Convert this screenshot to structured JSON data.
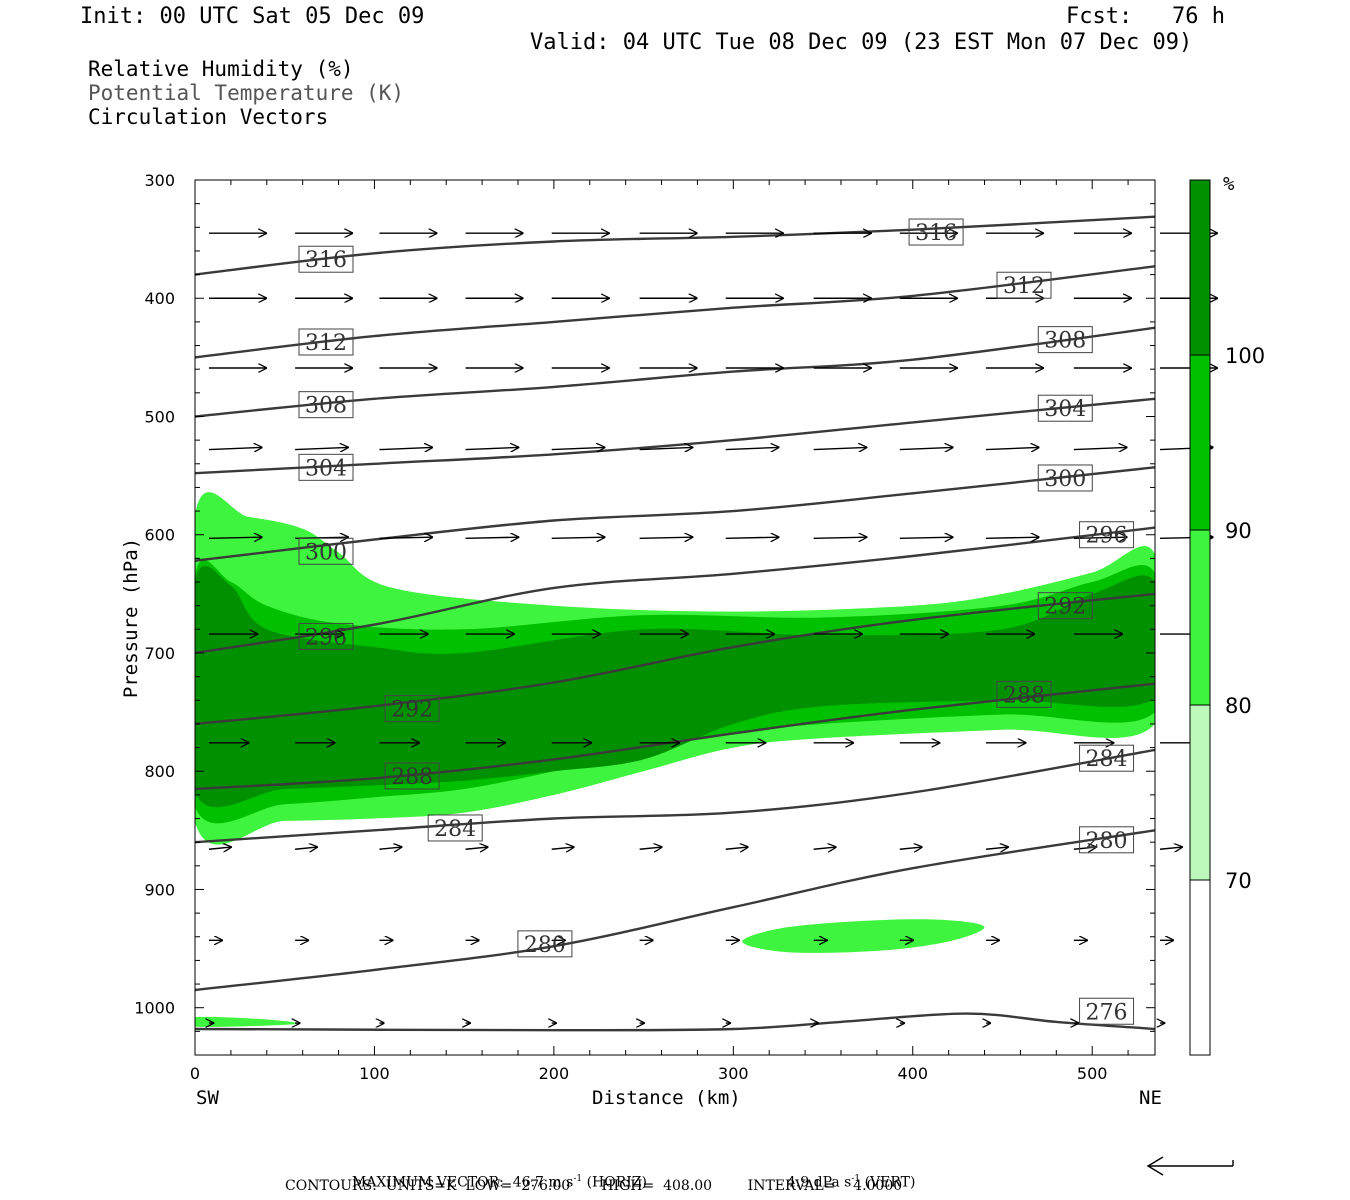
{
  "header": {
    "init": "Init: 00 UTC Sat 05 Dec 09",
    "fcst": "Fcst:   76 h",
    "valid": "Valid: 04 UTC Tue 08 Dec 09 (23 EST Mon 07 Dec 09)"
  },
  "legend": {
    "rh": "Relative Humidity (%)",
    "theta": "Potential Temperature (K)",
    "vectors": "Circulation Vectors"
  },
  "chart_data": {
    "type": "cross-section",
    "xlabel": "Distance (km)",
    "ylabel": "Pressure (hPa)",
    "x_ticks": [
      0,
      100,
      200,
      300,
      400,
      500
    ],
    "y_ticks": [
      300,
      400,
      500,
      600,
      700,
      800,
      900,
      1000
    ],
    "xlim": [
      0,
      535
    ],
    "ylim": [
      300,
      1040
    ],
    "y_inverted": true,
    "x_end_labels": {
      "left": "SW",
      "right": "NE"
    },
    "colorbar": {
      "unit": "%",
      "levels": [
        70,
        80,
        90,
        100
      ],
      "colors": [
        "#ffffff",
        "#bdf8bd",
        "#3ef43e",
        "#00c000",
        "#009000"
      ]
    },
    "theta_contours": [
      {
        "label": "316",
        "pts": [
          [
            0,
            380
          ],
          [
            100,
            362
          ],
          [
            200,
            352
          ],
          [
            300,
            348
          ],
          [
            400,
            342
          ],
          [
            535,
            331
          ]
        ],
        "label_at": [
          73,
          367
        ]
      },
      {
        "label": "316",
        "pts": [
          [
            0,
            380
          ],
          [
            100,
            362
          ],
          [
            200,
            352
          ],
          [
            300,
            348
          ],
          [
            400,
            342
          ],
          [
            535,
            331
          ]
        ],
        "label_at": [
          413,
          344
        ]
      },
      {
        "label": "312",
        "pts": [
          [
            0,
            450
          ],
          [
            100,
            432
          ],
          [
            200,
            420
          ],
          [
            300,
            408
          ],
          [
            400,
            398
          ],
          [
            535,
            373
          ]
        ],
        "label_at": [
          73,
          437
        ]
      },
      {
        "label": "312",
        "pts": [
          [
            0,
            450
          ],
          [
            100,
            432
          ],
          [
            200,
            420
          ],
          [
            300,
            408
          ],
          [
            400,
            398
          ],
          [
            535,
            373
          ]
        ],
        "label_at": [
          462,
          389
        ]
      },
      {
        "label": "308",
        "pts": [
          [
            0,
            500
          ],
          [
            100,
            485
          ],
          [
            200,
            475
          ],
          [
            300,
            462
          ],
          [
            400,
            452
          ],
          [
            535,
            425
          ]
        ],
        "label_at": [
          73,
          490
        ]
      },
      {
        "label": "308",
        "pts": [
          [
            0,
            500
          ],
          [
            100,
            485
          ],
          [
            200,
            475
          ],
          [
            300,
            462
          ],
          [
            400,
            452
          ],
          [
            535,
            425
          ]
        ],
        "label_at": [
          485,
          435
        ]
      },
      {
        "label": "304",
        "pts": [
          [
            0,
            548
          ],
          [
            100,
            540
          ],
          [
            200,
            532
          ],
          [
            300,
            520
          ],
          [
            400,
            505
          ],
          [
            535,
            485
          ]
        ],
        "label_at": [
          73,
          543
        ]
      },
      {
        "label": "304",
        "pts": [
          [
            0,
            548
          ],
          [
            100,
            540
          ],
          [
            200,
            532
          ],
          [
            300,
            520
          ],
          [
            400,
            505
          ],
          [
            535,
            485
          ]
        ],
        "label_at": [
          485,
          493
        ]
      },
      {
        "label": "300",
        "pts": [
          [
            0,
            622
          ],
          [
            100,
            604
          ],
          [
            200,
            588
          ],
          [
            300,
            580
          ],
          [
            400,
            565
          ],
          [
            535,
            543
          ]
        ],
        "label_at": [
          73,
          614
        ]
      },
      {
        "label": "300",
        "pts": [
          [
            0,
            622
          ],
          [
            100,
            604
          ],
          [
            200,
            588
          ],
          [
            300,
            580
          ],
          [
            400,
            565
          ],
          [
            535,
            543
          ]
        ],
        "label_at": [
          485,
          552
        ]
      },
      {
        "label": "296",
        "pts": [
          [
            0,
            700
          ],
          [
            100,
            676
          ],
          [
            200,
            645
          ],
          [
            300,
            633
          ],
          [
            400,
            618
          ],
          [
            535,
            594
          ]
        ],
        "label_at": [
          73,
          686
        ]
      },
      {
        "label": "296",
        "pts": [
          [
            0,
            700
          ],
          [
            100,
            676
          ],
          [
            200,
            645
          ],
          [
            300,
            633
          ],
          [
            400,
            618
          ],
          [
            535,
            594
          ]
        ],
        "label_at": [
          508,
          600
        ]
      },
      {
        "label": "292",
        "pts": [
          [
            0,
            760
          ],
          [
            100,
            745
          ],
          [
            200,
            725
          ],
          [
            300,
            695
          ],
          [
            400,
            672
          ],
          [
            535,
            650
          ]
        ],
        "label_at": [
          121,
          747
        ]
      },
      {
        "label": "292",
        "pts": [
          [
            0,
            760
          ],
          [
            100,
            745
          ],
          [
            200,
            725
          ],
          [
            300,
            695
          ],
          [
            400,
            672
          ],
          [
            535,
            650
          ]
        ],
        "label_at": [
          485,
          660
        ]
      },
      {
        "label": "288",
        "pts": [
          [
            0,
            815
          ],
          [
            100,
            806
          ],
          [
            200,
            790
          ],
          [
            300,
            768
          ],
          [
            400,
            748
          ],
          [
            535,
            726
          ]
        ],
        "label_at": [
          121,
          804
        ]
      },
      {
        "label": "288",
        "pts": [
          [
            0,
            815
          ],
          [
            100,
            806
          ],
          [
            200,
            790
          ],
          [
            300,
            768
          ],
          [
            400,
            748
          ],
          [
            535,
            726
          ]
        ],
        "label_at": [
          462,
          735
        ]
      },
      {
        "label": "284",
        "pts": [
          [
            0,
            860
          ],
          [
            100,
            850
          ],
          [
            200,
            840
          ],
          [
            300,
            835
          ],
          [
            400,
            818
          ],
          [
            535,
            782
          ]
        ],
        "label_at": [
          145,
          848
        ]
      },
      {
        "label": "284",
        "pts": [
          [
            0,
            860
          ],
          [
            100,
            850
          ],
          [
            200,
            840
          ],
          [
            300,
            835
          ],
          [
            400,
            818
          ],
          [
            535,
            782
          ]
        ],
        "label_at": [
          508,
          789
        ]
      },
      {
        "label": "280",
        "pts": [
          [
            0,
            985
          ],
          [
            100,
            968
          ],
          [
            200,
            948
          ],
          [
            300,
            915
          ],
          [
            400,
            882
          ],
          [
            535,
            850
          ]
        ],
        "label_at": [
          195,
          946
        ]
      },
      {
        "label": "280",
        "pts": [
          [
            0,
            985
          ],
          [
            100,
            968
          ],
          [
            200,
            948
          ],
          [
            300,
            915
          ],
          [
            400,
            882
          ],
          [
            535,
            850
          ]
        ],
        "label_at": [
          508,
          858
        ]
      },
      {
        "label": "276",
        "pts": [
          [
            0,
            1018
          ],
          [
            200,
            1019
          ],
          [
            300,
            1018
          ],
          [
            360,
            1012
          ],
          [
            430,
            1005
          ],
          [
            480,
            1012
          ],
          [
            535,
            1018
          ]
        ],
        "label_at": [
          508,
          1003
        ]
      }
    ],
    "rh_regions": [
      {
        "level": 80,
        "pts": [
          [
            0,
            583
          ],
          [
            30,
            585
          ],
          [
            60,
            595
          ],
          [
            80,
            615
          ],
          [
            110,
            645
          ],
          [
            200,
            660
          ],
          [
            300,
            665
          ],
          [
            400,
            660
          ],
          [
            450,
            650
          ],
          [
            500,
            632
          ],
          [
            535,
            617
          ],
          [
            535,
            760
          ],
          [
            450,
            765
          ],
          [
            350,
            772
          ],
          [
            300,
            780
          ],
          [
            250,
            800
          ],
          [
            200,
            820
          ],
          [
            150,
            835
          ],
          [
            100,
            840
          ],
          [
            50,
            842
          ],
          [
            0,
            843
          ]
        ]
      },
      {
        "level": 90,
        "pts": [
          [
            0,
            635
          ],
          [
            20,
            640
          ],
          [
            40,
            660
          ],
          [
            80,
            675
          ],
          [
            150,
            680
          ],
          [
            250,
            668
          ],
          [
            350,
            670
          ],
          [
            450,
            660
          ],
          [
            500,
            640
          ],
          [
            535,
            633
          ],
          [
            535,
            750
          ],
          [
            450,
            752
          ],
          [
            350,
            760
          ],
          [
            300,
            768
          ],
          [
            250,
            782
          ],
          [
            200,
            800
          ],
          [
            150,
            815
          ],
          [
            100,
            822
          ],
          [
            50,
            828
          ],
          [
            0,
            830
          ]
        ]
      },
      {
        "level": 100,
        "pts": [
          [
            0,
            640
          ],
          [
            20,
            643
          ],
          [
            40,
            680
          ],
          [
            100,
            695
          ],
          [
            150,
            700
          ],
          [
            250,
            680
          ],
          [
            350,
            685
          ],
          [
            450,
            680
          ],
          [
            500,
            650
          ],
          [
            535,
            640
          ],
          [
            535,
            738
          ],
          [
            450,
            740
          ],
          [
            350,
            745
          ],
          [
            300,
            760
          ],
          [
            250,
            790
          ],
          [
            200,
            800
          ],
          [
            150,
            808
          ],
          [
            100,
            812
          ],
          [
            50,
            815
          ],
          [
            0,
            818
          ]
        ]
      },
      {
        "level": 80,
        "pts": [
          [
            305,
            944
          ],
          [
            330,
            932
          ],
          [
            380,
            926
          ],
          [
            420,
            926
          ],
          [
            440,
            932
          ],
          [
            420,
            944
          ],
          [
            380,
            952
          ],
          [
            330,
            953
          ]
        ]
      },
      {
        "level": 80,
        "pts": [
          [
            0,
            1008
          ],
          [
            40,
            1010
          ],
          [
            55,
            1014
          ],
          [
            0,
            1016
          ]
        ]
      }
    ],
    "vector_rows": [
      {
        "p": 345,
        "dx": 26,
        "dy": 0
      },
      {
        "p": 400,
        "dx": 26,
        "dy": 0
      },
      {
        "p": 459,
        "dx": 26,
        "dy": 0
      },
      {
        "p": 528,
        "dx": 24,
        "dy": -1
      },
      {
        "p": 603,
        "dx": 24,
        "dy": -0.5
      },
      {
        "p": 684,
        "dx": 22,
        "dy": 0
      },
      {
        "p": 776,
        "dx": 18,
        "dy": 0
      },
      {
        "p": 866,
        "dx": 10,
        "dy": -1
      },
      {
        "p": 943,
        "dx": 6,
        "dy": 0
      },
      {
        "p": 1013,
        "dx": 2,
        "dy": 0
      }
    ],
    "vector_x": [
      5,
      53,
      100,
      148,
      196,
      245,
      293,
      342,
      390,
      438,
      487,
      535
    ]
  },
  "footer": {
    "max_vector_label": "MAXIMUM VECTOR:",
    "max_horiz": "46.7 m s",
    "horiz_exp": "-1",
    "horiz_tag": " (HORIZ)",
    "max_vert": "4.9 dPa s",
    "vert_exp": "-1",
    "vert_tag": " (VERT)",
    "contours": "CONTOURS:  UNITS=K  LOW=  276.00       HIGH=  408.00        INTERVAL=    4.0000"
  }
}
